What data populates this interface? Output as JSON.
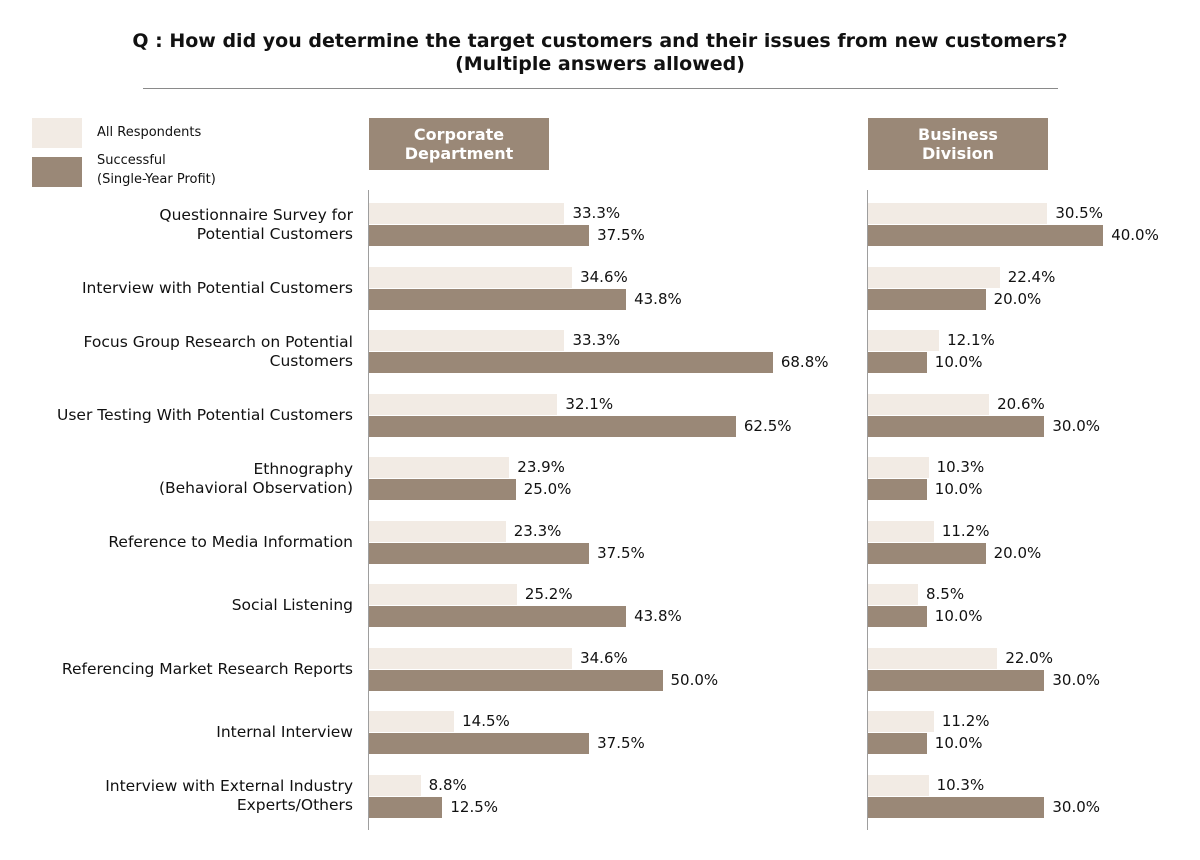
{
  "title_lines": [
    "Q : How did you determine the target customers and their issues from new customers?",
    "(Multiple answers allowed)"
  ],
  "legend": {
    "all_label": "All Respondents",
    "successful_label_lines": [
      "Successful",
      "(Single-Year Profit)"
    ]
  },
  "colors": {
    "all_respondents": "#f2ebe4",
    "successful": "#9a8877",
    "header_bg": "#9a8877",
    "axis": "#9e9e9e"
  },
  "chart_data": {
    "type": "bar",
    "orientation": "horizontal",
    "categories": [
      [
        "Questionnaire Survey for",
        "Potential Customers"
      ],
      [
        "Interview with Potential Customers"
      ],
      [
        "Focus Group Research on Potential",
        "Customers"
      ],
      [
        "User Testing With Potential Customers"
      ],
      [
        "Ethnography",
        "(Behavioral Observation)"
      ],
      [
        "Reference to Media Information"
      ],
      [
        "Social Listening"
      ],
      [
        "Referencing Market Research Reports"
      ],
      [
        "Internal Interview"
      ],
      [
        "Interview with External Industry",
        "Experts/Others"
      ]
    ],
    "panels": [
      {
        "header_lines": [
          "Corporate",
          "Department"
        ],
        "series": [
          {
            "name": "All Respondents",
            "values": [
              33.3,
              34.6,
              33.3,
              32.1,
              23.9,
              23.3,
              25.2,
              34.6,
              14.5,
              8.8
            ]
          },
          {
            "name": "Successful (Single-Year Profit)",
            "values": [
              37.5,
              43.8,
              68.8,
              62.5,
              25.0,
              37.5,
              43.8,
              50.0,
              37.5,
              12.5
            ]
          }
        ]
      },
      {
        "header_lines": [
          "Business",
          "Division"
        ],
        "series": [
          {
            "name": "All Respondents",
            "values": [
              30.5,
              22.4,
              12.1,
              20.6,
              10.3,
              11.2,
              8.5,
              22.0,
              11.2,
              10.3
            ]
          },
          {
            "name": "Successful (Single-Year Profit)",
            "values": [
              40.0,
              20.0,
              10.0,
              30.0,
              10.0,
              20.0,
              10.0,
              30.0,
              10.0,
              30.0
            ]
          }
        ]
      }
    ],
    "value_suffix": "%"
  }
}
